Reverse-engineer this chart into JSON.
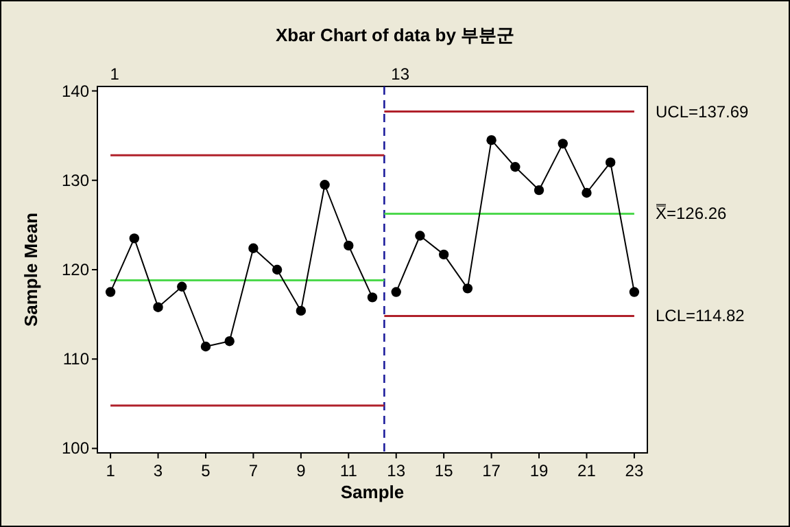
{
  "chart_data": {
    "type": "line",
    "title": "Xbar Chart of data by 부분군",
    "xlabel": "Sample",
    "ylabel": "Sample Mean",
    "xlim": [
      0.45,
      23.55
    ],
    "xticks": [
      1,
      3,
      5,
      7,
      9,
      11,
      13,
      15,
      17,
      19,
      21,
      23
    ],
    "x2lim": [
      0.45,
      23.55
    ],
    "x2ticks": [
      1,
      13
    ],
    "ylim": [
      99.5,
      140.5
    ],
    "yticks": [
      100,
      110,
      120,
      130,
      140
    ],
    "grid": false,
    "series": [
      {
        "color": "#000000",
        "marker": "circle",
        "x": [
          1,
          2,
          3,
          4,
          5,
          6,
          7,
          8,
          9,
          10,
          11,
          12
        ],
        "values": [
          117.5,
          123.5,
          115.8,
          118.1,
          111.4,
          112.0,
          122.4,
          120.0,
          115.4,
          129.5,
          122.7,
          116.9
        ]
      },
      {
        "color": "#000000",
        "marker": "circle",
        "x": [
          13,
          14,
          15,
          16,
          17,
          18,
          19,
          20,
          21,
          22,
          23
        ],
        "values": [
          117.5,
          123.8,
          121.7,
          117.9,
          134.5,
          131.5,
          128.9,
          134.1,
          128.6,
          132.0,
          117.5
        ]
      },
      {
        "color": "#b0202a",
        "marker": "none",
        "x": [
          1,
          12.5
        ],
        "values": [
          132.8,
          132.8
        ]
      },
      {
        "color": "#4cd84c",
        "marker": "none",
        "x": [
          1,
          12.5
        ],
        "values": [
          118.8,
          118.8
        ]
      },
      {
        "color": "#b0202a",
        "marker": "none",
        "x": [
          1,
          12.5
        ],
        "values": [
          104.8,
          104.8
        ]
      },
      {
        "color": "#b0202a",
        "marker": "none",
        "x": [
          12.5,
          23
        ],
        "values": [
          137.69,
          137.69
        ]
      },
      {
        "color": "#4cd84c",
        "marker": "none",
        "x": [
          12.5,
          23
        ],
        "values": [
          126.26,
          126.26
        ]
      },
      {
        "color": "#b0202a",
        "marker": "none",
        "x": [
          12.5,
          23
        ],
        "values": [
          114.82,
          114.82
        ]
      }
    ],
    "ref_lines": [
      {
        "axis": "x",
        "value": 12.5,
        "color": "#1c1c9c",
        "line_style": "dashed"
      }
    ],
    "annotations": [
      "UCL=137.69",
      "X̿=126.26",
      "LCL=114.82"
    ]
  }
}
